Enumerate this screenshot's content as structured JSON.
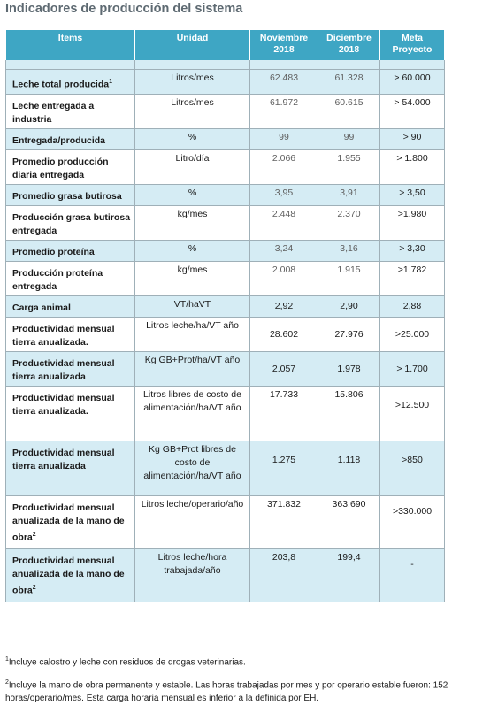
{
  "title": "Indicadores de producción del sistema",
  "headers": {
    "items": "Items",
    "unidad": "Unidad",
    "noviembre": "Noviembre 2018",
    "diciembre": "Diciembre 2018",
    "meta": "Meta Proyecto"
  },
  "rows": [
    {
      "item": "Leche total producida",
      "sup": "1",
      "unit": "Litros/mes",
      "nov": "62.483",
      "dic": "61.328",
      "meta": "> 60.000"
    },
    {
      "item": "Leche entregada a industria",
      "sup": "",
      "unit": "Litros/mes",
      "nov": "61.972",
      "dic": "60.615",
      "meta": "> 54.000"
    },
    {
      "item": "Entregada/producida",
      "sup": "",
      "unit": "%",
      "nov": "99",
      "dic": "99",
      "meta": "> 90"
    },
    {
      "item": "Promedio producción diaria entregada",
      "sup": "",
      "unit": "Litro/día",
      "nov": "2.066",
      "dic": "1.955",
      "meta": "> 1.800"
    },
    {
      "item": "Promedio grasa butirosa",
      "sup": "",
      "unit": "%",
      "nov": "3,95",
      "dic": "3,91",
      "meta": "> 3,50"
    },
    {
      "item": "Producción grasa butirosa entregada",
      "sup": "",
      "unit": "kg/mes",
      "nov": "2.448",
      "dic": "2.370",
      "meta": ">1.980"
    },
    {
      "item": "Promedio proteína",
      "sup": "",
      "unit": "%",
      "nov": "3,24",
      "dic": "3,16",
      "meta": "> 3,30"
    },
    {
      "item": "Producción proteína entregada",
      "sup": "",
      "unit": "kg/mes",
      "nov": "2.008",
      "dic": "1.915",
      "meta": ">1.782"
    },
    {
      "item": "Carga animal",
      "sup": "",
      "unit": "VT/haVT",
      "nov": "2,92",
      "dic": "2,90",
      "meta": "2,88"
    },
    {
      "item": "Productividad mensual tierra anualizada.",
      "sup": "",
      "unit": "Litros leche/ha/VT año",
      "nov": "28.602",
      "dic": "27.976",
      "meta": ">25.000"
    },
    {
      "item": "Productividad mensual tierra anualizada",
      "sup": "",
      "unit": "Kg GB+Prot/ha/VT año",
      "nov": "2.057",
      "dic": "1.978",
      "meta": "> 1.700"
    },
    {
      "item": "Productividad mensual tierra anualizada.",
      "sup": "",
      "unit": "Litros libres de costo de alimentación/ha/VT año",
      "nov": "17.733",
      "dic": "15.806",
      "meta": ">12.500"
    },
    {
      "item": "Productividad mensual tierra anualizada",
      "sup": "",
      "unit": "Kg GB+Prot libres de costo de alimentación/ha/VT año",
      "nov": "1.275",
      "dic": "1.118",
      "meta": ">850"
    },
    {
      "item": "Productividad mensual anualizada de la mano de obra",
      "sup": "2",
      "unit": "Litros leche/operario/año",
      "nov": "371.832",
      "dic": "363.690",
      "meta": ">330.000"
    },
    {
      "item": "Productividad mensual anualizada de la mano de obra",
      "sup": "2",
      "unit": "Litros leche/hora trabajada/año",
      "nov": "203,8",
      "dic": "199,4",
      "meta": "-"
    }
  ],
  "footnotes": {
    "f1_mark": "1",
    "f1": "Incluye calostro y leche con residuos de drogas veterinarias.",
    "f2_mark": "2",
    "f2": "Incluye la mano de obra permanente y estable. Las horas trabajadas por mes y por operario estable fueron: 152 horas/operario/mes. Esta carga horaria mensual es inferior a la definida por EH."
  }
}
